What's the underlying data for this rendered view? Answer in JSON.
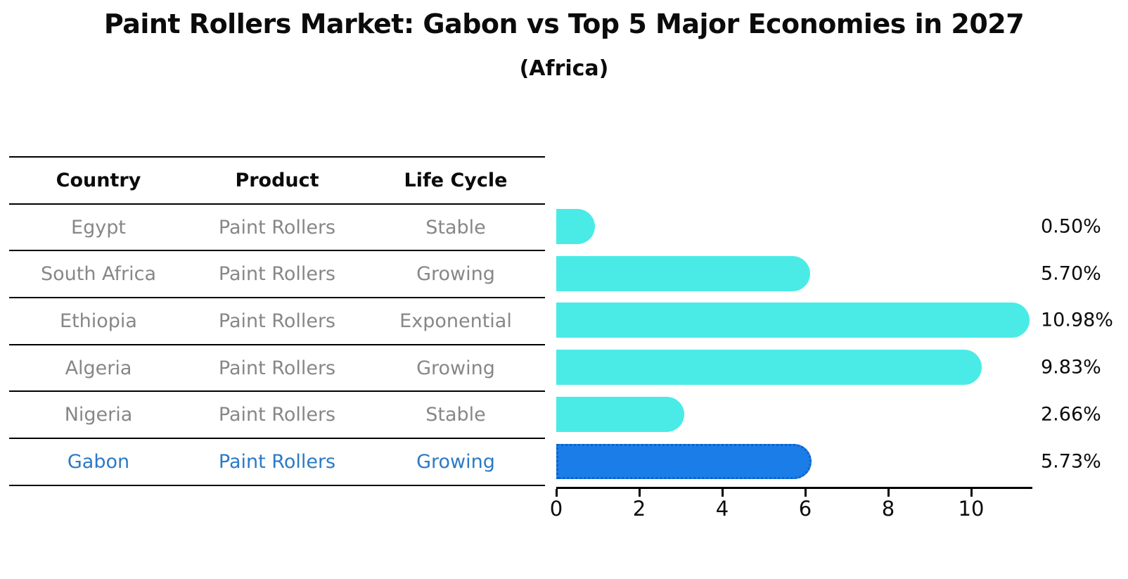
{
  "header": {
    "title": "Paint Rollers Market: Gabon vs Top 5 Major Economies in 2027",
    "subtitle": "(Africa)"
  },
  "table": {
    "headers": [
      "Country",
      "Product",
      "Life Cycle"
    ],
    "rows": [
      {
        "country": "Egypt",
        "product": "Paint Rollers",
        "life_cycle": "Stable",
        "highlight": false
      },
      {
        "country": "South Africa",
        "product": "Paint Rollers",
        "life_cycle": "Growing",
        "highlight": false
      },
      {
        "country": "Ethiopia",
        "product": "Paint Rollers",
        "life_cycle": "Exponential",
        "highlight": false
      },
      {
        "country": "Algeria",
        "product": "Paint Rollers",
        "life_cycle": "Growing",
        "highlight": false
      },
      {
        "country": "Nigeria",
        "product": "Paint Rollers",
        "life_cycle": "Stable",
        "highlight": false
      },
      {
        "country": "Gabon",
        "product": "Paint Rollers",
        "life_cycle": "Growing",
        "highlight": true
      }
    ]
  },
  "chart_data": {
    "type": "bar",
    "orientation": "horizontal",
    "title": "Paint Rollers Market: Gabon vs Top 5 Major Economies in 2027",
    "subtitle": "(Africa)",
    "categories": [
      "Egypt",
      "South Africa",
      "Ethiopia",
      "Algeria",
      "Nigeria",
      "Gabon"
    ],
    "values": [
      0.5,
      5.7,
      10.98,
      9.83,
      2.66,
      5.73
    ],
    "value_labels": [
      "0.50%",
      "5.70%",
      "10.98%",
      "9.83%",
      "2.66%",
      "5.73%"
    ],
    "xticks": [
      0,
      2,
      4,
      6,
      8,
      10
    ],
    "xlim": [
      0,
      11.5
    ],
    "grid": false,
    "legend": "none",
    "bar_color": "#4aebe6",
    "highlight_index": 5,
    "highlight_bar_color": "#1b7ee8",
    "highlight_border_color": "#1160c4",
    "highlight_text_color": "#2b7ac6",
    "muted_text_color": "#878787"
  }
}
